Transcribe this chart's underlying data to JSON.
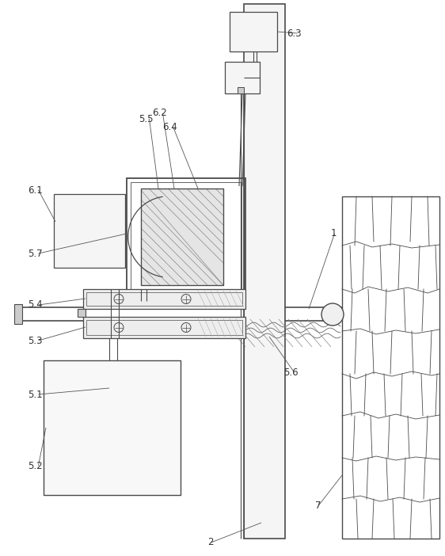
{
  "bg_color": "#ffffff",
  "line_color": "#4a4a4a",
  "fig_width": 5.62,
  "fig_height": 7.02,
  "dpi": 100
}
